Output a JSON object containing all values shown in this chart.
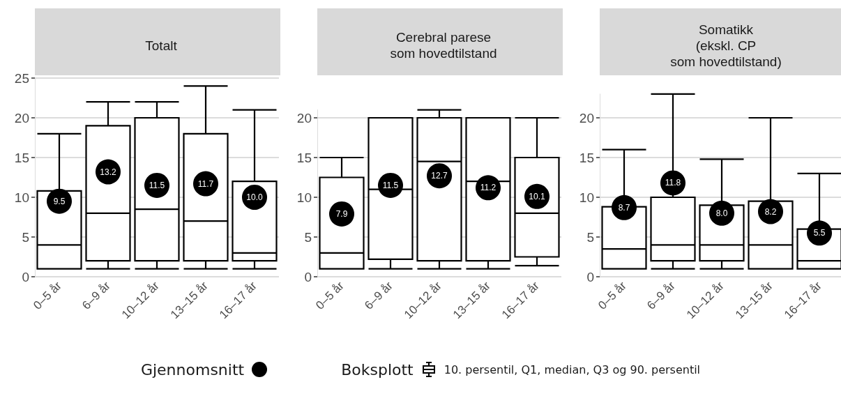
{
  "chart_data": [
    {
      "type": "box",
      "title": "Totalt",
      "categories": [
        "0–5 år",
        "6–9 år",
        "10–12 år",
        "13–15 år",
        "16–17 år"
      ],
      "ylim": [
        0,
        25
      ],
      "yticks": [
        0,
        5,
        10,
        15,
        20,
        25
      ],
      "grid": "y",
      "legend": "bottom",
      "marker": "circle",
      "annotations": [
        "10. persentil, Q1, median, Q3 og 90. persentil"
      ],
      "series": [
        {
          "type": "box",
          "name": "Boksplott",
          "color": "#000000",
          "boxes": [
            {
              "low": 1,
              "q1": 1,
              "median": 4,
              "q3": 10.8,
              "high": 18
            },
            {
              "low": 1,
              "q1": 2,
              "median": 8,
              "q3": 19,
              "high": 22
            },
            {
              "low": 1,
              "q1": 2,
              "median": 8.5,
              "q3": 20,
              "high": 22
            },
            {
              "low": 1,
              "q1": 2,
              "median": 7,
              "q3": 18,
              "high": 24
            },
            {
              "low": 1,
              "q1": 2,
              "median": 3,
              "q3": 12,
              "high": 21
            }
          ]
        },
        {
          "type": "scatter",
          "name": "Gjennomsnitt",
          "color": "#000000",
          "x": [
            "0–5 år",
            "6–9 år",
            "10–12 år",
            "13–15 år",
            "16–17 år"
          ],
          "values": [
            9.5,
            13.2,
            11.5,
            11.7,
            10.0
          ],
          "value_labels": [
            "9.5",
            "13.2",
            "11.5",
            "11.7",
            "10.0"
          ]
        }
      ]
    },
    {
      "type": "box",
      "title": "Cerebral parese\nsom hovedtilstand",
      "categories": [
        "0–5 år",
        "6–9 år",
        "10–12 år",
        "13–15 år",
        "16–17 år"
      ],
      "ylim": [
        0,
        21
      ],
      "yticks": [
        0,
        5,
        10,
        15,
        20
      ],
      "grid": "y",
      "marker": "circle",
      "series": [
        {
          "type": "box",
          "color": "#000000",
          "boxes": [
            {
              "low": 1,
              "q1": 1,
              "median": 3,
              "q3": 12.5,
              "high": 15
            },
            {
              "low": 1,
              "q1": 2.2,
              "median": 11,
              "q3": 20,
              "high": 20
            },
            {
              "low": 1,
              "q1": 2,
              "median": 14.5,
              "q3": 20,
              "high": 21
            },
            {
              "low": 1,
              "q1": 2,
              "median": 12,
              "q3": 20,
              "high": 20
            },
            {
              "low": 1.4,
              "q1": 2.5,
              "median": 8,
              "q3": 15,
              "high": 20
            }
          ]
        },
        {
          "type": "scatter",
          "color": "#000000",
          "x": [
            "0–5 år",
            "6–9 år",
            "10–12 år",
            "13–15 år",
            "16–17 år"
          ],
          "values": [
            7.9,
            11.5,
            12.7,
            11.2,
            10.1
          ],
          "value_labels": [
            "7.9",
            "11.5",
            "12.7",
            "11.2",
            "10.1"
          ]
        }
      ]
    },
    {
      "type": "box",
      "title": "Somatikk\n(ekskl. CP\nsom hovedtilstand)",
      "categories": [
        "0–5 år",
        "6–9 år",
        "10–12 år",
        "13–15 år",
        "16–17 år"
      ],
      "ylim": [
        0,
        23
      ],
      "yticks": [
        0,
        5,
        10,
        15,
        20
      ],
      "grid": "y",
      "marker": "circle",
      "series": [
        {
          "type": "box",
          "color": "#000000",
          "boxes": [
            {
              "low": 1,
              "q1": 1,
              "median": 3.5,
              "q3": 8.8,
              "high": 16
            },
            {
              "low": 1,
              "q1": 2,
              "median": 4,
              "q3": 10,
              "high": 23
            },
            {
              "low": 1,
              "q1": 2,
              "median": 4,
              "q3": 9,
              "high": 14.8
            },
            {
              "low": 1,
              "q1": 1,
              "median": 4,
              "q3": 9.5,
              "high": 20
            },
            {
              "low": 1,
              "q1": 1,
              "median": 2,
              "q3": 6,
              "high": 13
            }
          ]
        },
        {
          "type": "scatter",
          "color": "#000000",
          "x": [
            "0–5 år",
            "6–9 år",
            "10–12 år",
            "13–15 år",
            "16–17 år"
          ],
          "values": [
            8.7,
            11.8,
            8.0,
            8.2,
            5.5
          ],
          "value_labels": [
            "8.7",
            "11.8",
            "8.0",
            "8.2",
            "5.5"
          ]
        }
      ]
    }
  ]
}
